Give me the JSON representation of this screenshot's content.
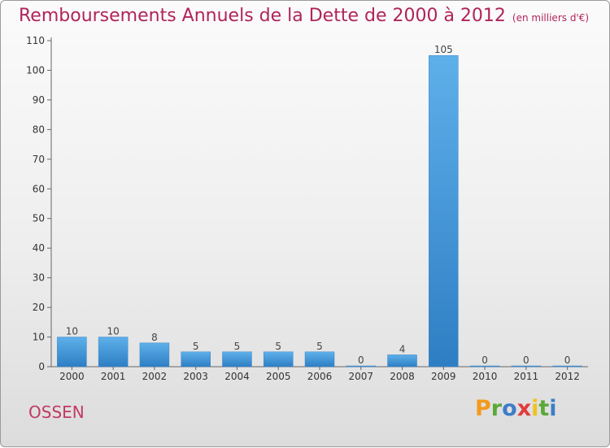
{
  "title": "Remboursements Annuels de la Dette de 2000 à 2012",
  "subtitle": "(en milliers d'€)",
  "commune": "OSSEN",
  "logo": {
    "letters": [
      "P",
      "r",
      "o",
      "x",
      "i",
      "t",
      "i"
    ],
    "colors": [
      "#f29a1d",
      "#5aa83b",
      "#3d7dc8",
      "#e23a3a",
      "#f2c21d",
      "#5aa83b",
      "#3d7dc8"
    ]
  },
  "chart_data": {
    "type": "bar",
    "categories": [
      "2000",
      "2001",
      "2002",
      "2003",
      "2004",
      "2005",
      "2006",
      "2007",
      "2008",
      "2009",
      "2010",
      "2011",
      "2012"
    ],
    "values": [
      10,
      10,
      8,
      5,
      5,
      5,
      5,
      0,
      4,
      105,
      0,
      0,
      0
    ],
    "ylim": [
      0,
      110
    ],
    "yticks": [
      0,
      10,
      20,
      30,
      40,
      50,
      60,
      70,
      80,
      90,
      100,
      110
    ],
    "grid": false,
    "bar_color_top": "#5eb0ea",
    "bar_color_bottom": "#2e7ec4"
  }
}
